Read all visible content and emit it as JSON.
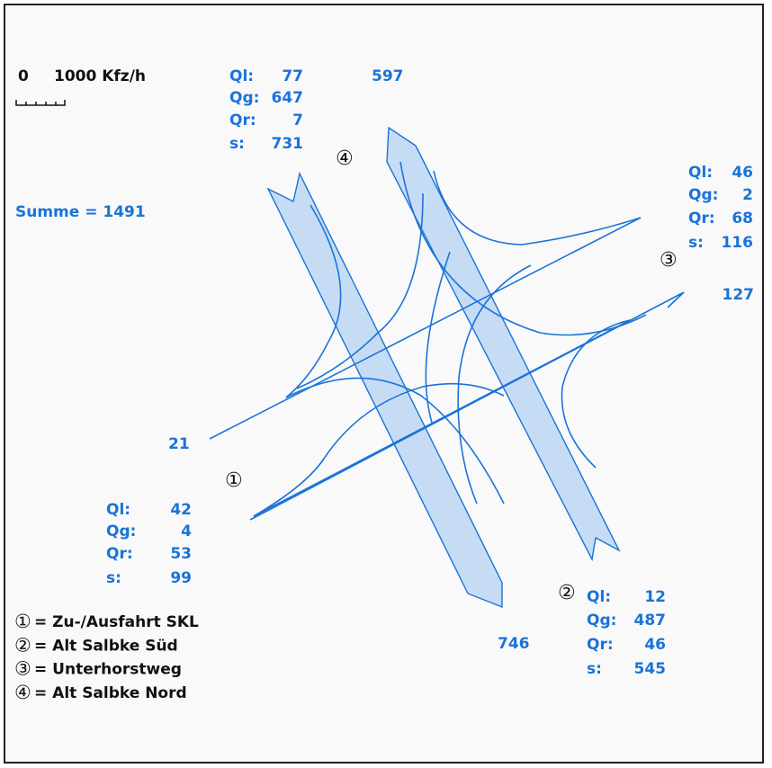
{
  "scale": {
    "zero": "0",
    "unit": "1000 Kfz/h"
  },
  "summe": "Summe = 1491",
  "approaches": [
    {
      "symbol": "①",
      "through": 21,
      "rows": [
        {
          "label": "Ql:",
          "value": 42
        },
        {
          "label": "Qg:",
          "value": 4
        },
        {
          "label": "Qr:",
          "value": 53
        },
        {
          "label": "s:",
          "value": 99
        }
      ]
    },
    {
      "symbol": "②",
      "through": 746,
      "rows": [
        {
          "label": "Ql:",
          "value": 12
        },
        {
          "label": "Qg:",
          "value": 487
        },
        {
          "label": "Qr:",
          "value": 46
        },
        {
          "label": "s:",
          "value": 545
        }
      ]
    },
    {
      "symbol": "③",
      "through": 127,
      "rows": [
        {
          "label": "Ql:",
          "value": 46
        },
        {
          "label": "Qg:",
          "value": 2
        },
        {
          "label": "Qr:",
          "value": 68
        },
        {
          "label": "s:",
          "value": 116
        }
      ]
    },
    {
      "symbol": "④",
      "through": 597,
      "rows": [
        {
          "label": "Ql:",
          "value": 77
        },
        {
          "label": "Qg:",
          "value": 647
        },
        {
          "label": "Qr:",
          "value": 7
        },
        {
          "label": "s:",
          "value": 731
        }
      ]
    }
  ],
  "legend": [
    {
      "symbol": "①",
      "text": "= Zu-/Ausfahrt SKL"
    },
    {
      "symbol": "②",
      "text": "= Alt Salbke Süd"
    },
    {
      "symbol": "③",
      "text": "= Unterhorstweg"
    },
    {
      "symbol": "④",
      "text": "= Alt Salbke Nord"
    }
  ]
}
